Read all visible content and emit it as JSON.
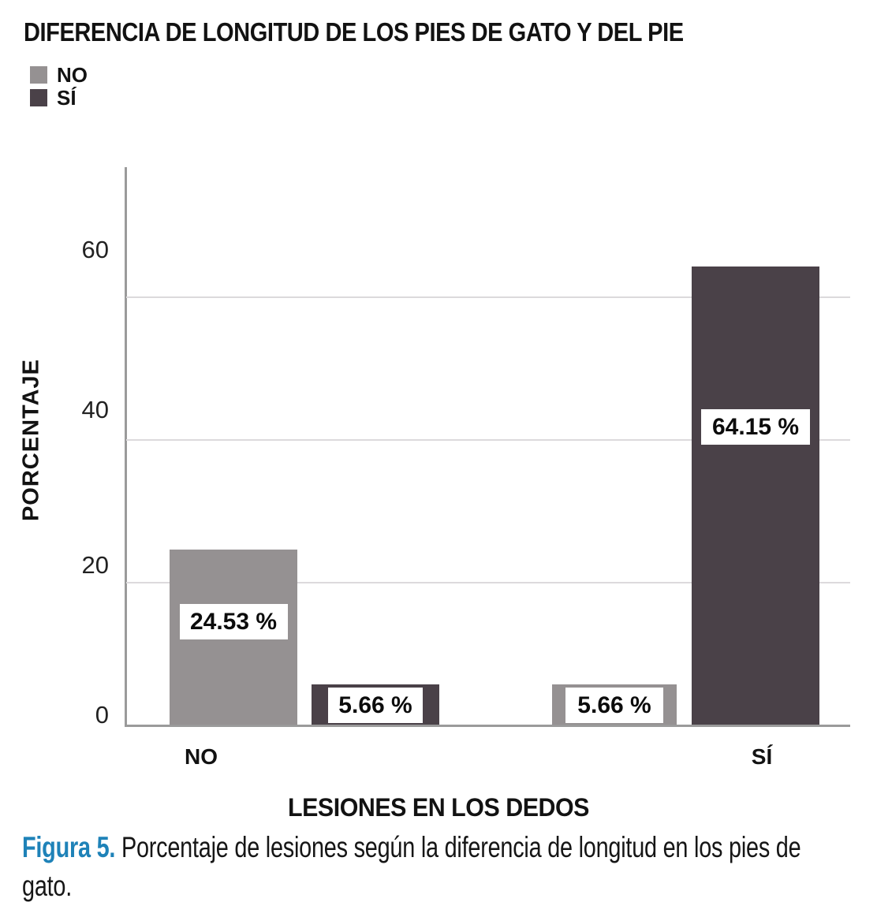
{
  "title": "DIFERENCIA DE LONGITUD DE LOS PIES DE GATO Y DEL PIE",
  "legend": {
    "items": [
      {
        "label": "NO",
        "color": "#959192"
      },
      {
        "label": "SÍ",
        "color": "#4a4148"
      }
    ]
  },
  "chart_data": {
    "type": "bar",
    "title": "DIFERENCIA DE LONGITUD DE LOS PIES DE GATO Y DEL PIE",
    "categories": [
      "NO",
      "SÍ"
    ],
    "series": [
      {
        "name": "NO",
        "color": "#959192",
        "values": [
          24.53,
          5.66
        ]
      },
      {
        "name": "SÍ",
        "color": "#4a4148",
        "values": [
          5.66,
          64.15
        ]
      }
    ],
    "value_labels": [
      [
        "24.53 %",
        "5.66 %"
      ],
      [
        "5.66 %",
        "64.15 %"
      ]
    ],
    "units": "%",
    "xlabel": "LESIONES EN LOS DEDOS",
    "ylabel": "PORCENTAJE",
    "yticks": [
      0,
      20,
      40,
      60
    ],
    "ylim": [
      0,
      78
    ],
    "grid": true,
    "legend_position": "top-left"
  },
  "caption": {
    "label": "Figura 5.",
    "text": " Porcentaje de lesiones según la diferencia de longitud en los pies de gato."
  },
  "colors": {
    "bar_no": "#959192",
    "bar_si": "#4a4148",
    "gridline": "#dcdadc",
    "axis": "#9a9a9a",
    "caption_accent": "#1e82b8",
    "text": "#111111"
  }
}
